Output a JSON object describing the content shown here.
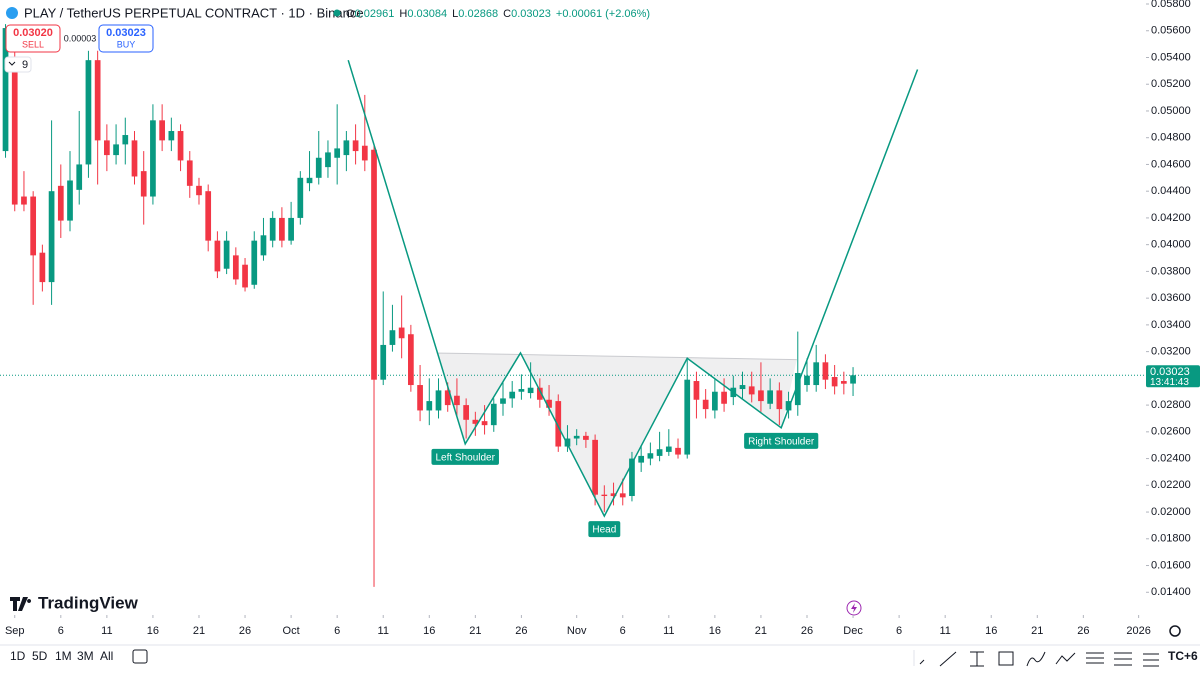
{
  "chart_data": {
    "type": "candlestick",
    "up_color": "#089981",
    "down_color": "#f23645",
    "open": [
      0.047,
      0.0538,
      0.0436,
      0.0436,
      0.0394,
      0.0372,
      0.0444,
      0.0418,
      0.0441,
      0.046,
      0.0538,
      0.0478,
      0.0467,
      0.0475,
      0.0478,
      0.0455,
      0.0436,
      0.0493,
      0.0478,
      0.0485,
      0.0463,
      0.0444,
      0.044,
      0.0403,
      0.0382,
      0.0392,
      0.0385,
      0.037,
      0.0392,
      0.0403,
      0.042,
      0.0403,
      0.042,
      0.0446,
      0.045,
      0.0458,
      0.0465,
      0.0467,
      0.0478,
      0.0474,
      0.0471,
      0.0299,
      0.0325,
      0.0338,
      0.0333,
      0.0295,
      0.0276,
      0.0276,
      0.0291,
      0.0287,
      0.028,
      0.0269,
      0.0268,
      0.0265,
      0.0281,
      0.0285,
      0.029,
      0.0289,
      0.0293,
      0.0284,
      0.0283,
      0.0249,
      0.0255,
      0.0257,
      0.0254,
      0.0213,
      0.0214,
      0.0214,
      0.0212,
      0.0237,
      0.024,
      0.0242,
      0.0245,
      0.0248,
      0.0243,
      0.0298,
      0.0284,
      0.0276,
      0.029,
      0.0286,
      0.0292,
      0.0294,
      0.0291,
      0.0281,
      0.0291,
      0.0276,
      0.028,
      0.0295,
      0.0295,
      0.0312,
      0.0301,
      0.0298,
      0.02961
    ],
    "high": [
      0.0565,
      0.0545,
      0.0455,
      0.044,
      0.04,
      0.0493,
      0.046,
      0.047,
      0.05,
      0.0545,
      0.0545,
      0.049,
      0.049,
      0.0495,
      0.0485,
      0.047,
      0.0505,
      0.0505,
      0.0495,
      0.049,
      0.047,
      0.045,
      0.0445,
      0.041,
      0.041,
      0.0398,
      0.039,
      0.041,
      0.042,
      0.0425,
      0.0428,
      0.0432,
      0.0455,
      0.047,
      0.0485,
      0.0478,
      0.0505,
      0.0485,
      0.049,
      0.0512,
      0.0475,
      0.0365,
      0.0355,
      0.0362,
      0.034,
      0.031,
      0.03,
      0.03,
      0.0297,
      0.03,
      0.0285,
      0.0275,
      0.028,
      0.0285,
      0.0298,
      0.0298,
      0.0303,
      0.0312,
      0.03,
      0.0295,
      0.0288,
      0.0265,
      0.0262,
      0.026,
      0.0258,
      0.022,
      0.0222,
      0.0225,
      0.0245,
      0.025,
      0.0252,
      0.026,
      0.0262,
      0.0255,
      0.0315,
      0.0305,
      0.0292,
      0.03,
      0.03,
      0.0302,
      0.0305,
      0.0305,
      0.0312,
      0.03,
      0.0297,
      0.029,
      0.0335,
      0.0315,
      0.0325,
      0.0318,
      0.031,
      0.0305,
      0.03084
    ],
    "low": [
      0.0465,
      0.0425,
      0.0425,
      0.0355,
      0.0365,
      0.0355,
      0.0405,
      0.041,
      0.043,
      0.045,
      0.0445,
      0.0455,
      0.046,
      0.046,
      0.0445,
      0.0415,
      0.043,
      0.047,
      0.047,
      0.0455,
      0.0435,
      0.043,
      0.0395,
      0.0375,
      0.0378,
      0.037,
      0.0365,
      0.0367,
      0.0388,
      0.0398,
      0.0398,
      0.04,
      0.0415,
      0.044,
      0.0445,
      0.045,
      0.0445,
      0.0455,
      0.046,
      0.0455,
      0.0144,
      0.0295,
      0.032,
      0.0315,
      0.029,
      0.0268,
      0.0265,
      0.027,
      0.0275,
      0.0272,
      0.0255,
      0.0257,
      0.0258,
      0.026,
      0.0272,
      0.0278,
      0.0284,
      0.0285,
      0.0278,
      0.0272,
      0.0245,
      0.0245,
      0.025,
      0.0248,
      0.0205,
      0.02,
      0.0205,
      0.0205,
      0.0208,
      0.023,
      0.0235,
      0.0238,
      0.0242,
      0.024,
      0.024,
      0.027,
      0.027,
      0.027,
      0.0275,
      0.028,
      0.0285,
      0.0282,
      0.0275,
      0.0277,
      0.0265,
      0.027,
      0.0272,
      0.029,
      0.029,
      0.0292,
      0.0288,
      0.0288,
      0.02868
    ],
    "close": [
      0.0562,
      0.043,
      0.043,
      0.0392,
      0.0372,
      0.044,
      0.0418,
      0.0448,
      0.046,
      0.0538,
      0.0478,
      0.0467,
      0.0475,
      0.0482,
      0.0451,
      0.0436,
      0.0493,
      0.0478,
      0.0485,
      0.0463,
      0.0444,
      0.0437,
      0.0403,
      0.038,
      0.0403,
      0.0374,
      0.0368,
      0.0403,
      0.0407,
      0.042,
      0.0403,
      0.042,
      0.045,
      0.045,
      0.0465,
      0.0469,
      0.0472,
      0.0478,
      0.047,
      0.0463,
      0.0299,
      0.0325,
      0.0336,
      0.033,
      0.0295,
      0.0276,
      0.0283,
      0.0291,
      0.028,
      0.028,
      0.0269,
      0.0266,
      0.0265,
      0.0281,
      0.0285,
      0.029,
      0.0292,
      0.0293,
      0.0284,
      0.0278,
      0.0249,
      0.0255,
      0.0257,
      0.0254,
      0.0213,
      0.0212,
      0.0212,
      0.0211,
      0.024,
      0.0242,
      0.0244,
      0.0247,
      0.0249,
      0.0243,
      0.0299,
      0.0284,
      0.0277,
      0.029,
      0.0281,
      0.0293,
      0.0295,
      0.0288,
      0.0283,
      0.0291,
      0.0277,
      0.0283,
      0.0304,
      0.0302,
      0.0312,
      0.0299,
      0.0294,
      0.0296,
      0.03023
    ],
    "xlim": [
      -0.6,
      123.8
    ],
    "xticks": [
      {
        "value": 1,
        "label": "Sep"
      },
      {
        "value": 6,
        "label": "6"
      },
      {
        "value": 11,
        "label": "11"
      },
      {
        "value": 16,
        "label": "16"
      },
      {
        "value": 21,
        "label": "21"
      },
      {
        "value": 26,
        "label": "26"
      },
      {
        "value": 31,
        "label": "Oct"
      },
      {
        "value": 36,
        "label": "6"
      },
      {
        "value": 41,
        "label": "11"
      },
      {
        "value": 46,
        "label": "16"
      },
      {
        "value": 51,
        "label": "21"
      },
      {
        "value": 56,
        "label": "26"
      },
      {
        "value": 62,
        "label": "Nov"
      },
      {
        "value": 67,
        "label": "6"
      },
      {
        "value": 72,
        "label": "11"
      },
      {
        "value": 77,
        "label": "16"
      },
      {
        "value": 82,
        "label": "21"
      },
      {
        "value": 87,
        "label": "26"
      },
      {
        "value": 92,
        "label": "Dec"
      },
      {
        "value": 97,
        "label": "6"
      },
      {
        "value": 102,
        "label": "11"
      },
      {
        "value": 107,
        "label": "16"
      },
      {
        "value": 112,
        "label": "21"
      },
      {
        "value": 117,
        "label": "26"
      },
      {
        "value": 123,
        "label": "2026"
      }
    ],
    "ylim": [
      0.0123,
      0.0583
    ],
    "yticks": [
      {
        "value": 0.058,
        "label": "0.05800"
      },
      {
        "value": 0.056,
        "label": "0.05600"
      },
      {
        "value": 0.054,
        "label": "0.05400"
      },
      {
        "value": 0.052,
        "label": "0.05200"
      },
      {
        "value": 0.05,
        "label": "0.05000"
      },
      {
        "value": 0.048,
        "label": "0.04800"
      },
      {
        "value": 0.046,
        "label": "0.04600"
      },
      {
        "value": 0.044,
        "label": "0.04400"
      },
      {
        "value": 0.042,
        "label": "0.04200"
      },
      {
        "value": 0.04,
        "label": "0.04000"
      },
      {
        "value": 0.038,
        "label": "0.03800"
      },
      {
        "value": 0.036,
        "label": "0.03600"
      },
      {
        "value": 0.034,
        "label": "0.03400"
      },
      {
        "value": 0.032,
        "label": "0.03200"
      },
      {
        "value": 0.03,
        "label": "0.03000"
      },
      {
        "value": 0.028,
        "label": "0.02800"
      },
      {
        "value": 0.026,
        "label": "0.02600"
      },
      {
        "value": 0.024,
        "label": "0.02400"
      },
      {
        "value": 0.022,
        "label": "0.02200"
      },
      {
        "value": 0.02,
        "label": "0.02000"
      },
      {
        "value": 0.018,
        "label": "0.01800"
      },
      {
        "value": 0.016,
        "label": "0.01600"
      },
      {
        "value": 0.014,
        "label": "0.01400"
      }
    ],
    "pattern": {
      "color": "#089981",
      "x": [
        37.2,
        49.9,
        55.9,
        65,
        74,
        84.2,
        99
      ],
      "y": [
        0.0538,
        0.0251,
        0.0319,
        0.0197,
        0.0315,
        0.0263,
        0.0531
      ]
    },
    "neckline": {
      "x": [
        46.8,
        85.9
      ],
      "y": [
        0.0319,
        0.0314
      ]
    },
    "annotations": [
      {
        "text": "Left Shoulder",
        "x": 49.9,
        "y": 0.0251
      },
      {
        "text": "Head",
        "x": 65,
        "y": 0.0197
      },
      {
        "text": "Right Shoulder",
        "x": 84.2,
        "y": 0.0263
      }
    ],
    "last_price": {
      "value": 0.03023,
      "label": "0.03023",
      "countdown": "13:41:43"
    }
  },
  "header": {
    "symbol": "PLAY / TetherUS PERPETUAL CONTRACT · 1D · Binance",
    "ohlc": [
      {
        "key": "O",
        "value": "0.02961"
      },
      {
        "key": "H",
        "value": "0.03084"
      },
      {
        "key": "L",
        "value": "0.02868"
      },
      {
        "key": "C",
        "value": "0.03023"
      }
    ],
    "change": "+0.00061 (+2.06%)",
    "sell": {
      "price": "0.03020",
      "label": "SELL"
    },
    "spread": "0.00003",
    "buy": {
      "price": "0.03023",
      "label": "BUY"
    },
    "indicators": "9"
  },
  "logo": "TradingView",
  "toolbar": {
    "timeframes": [
      "1D",
      "5D",
      "1M",
      "3M",
      "All"
    ],
    "timezone": "TC+6"
  }
}
